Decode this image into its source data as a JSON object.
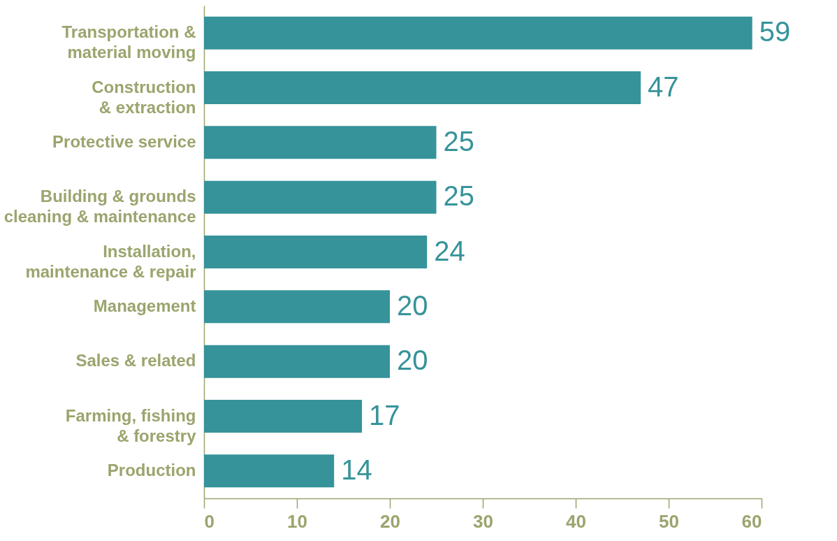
{
  "chart_data": {
    "type": "bar",
    "orientation": "horizontal",
    "categories": [
      "Transportation &\nmaterial moving",
      "Construction\n& extraction",
      "Protective service",
      "Building & grounds\ncleaning & maintenance",
      "Installation,\nmaintenance & repair",
      "Management",
      "Sales & related",
      "Farming, fishing\n& forestry",
      "Production"
    ],
    "values": [
      59,
      47,
      25,
      25,
      24,
      20,
      20,
      17,
      14
    ],
    "color": "#36939a",
    "xlim": [
      0,
      60
    ],
    "xticks": [
      0,
      10,
      20,
      30,
      40,
      50,
      60
    ],
    "data_labels": true,
    "grid": false
  }
}
